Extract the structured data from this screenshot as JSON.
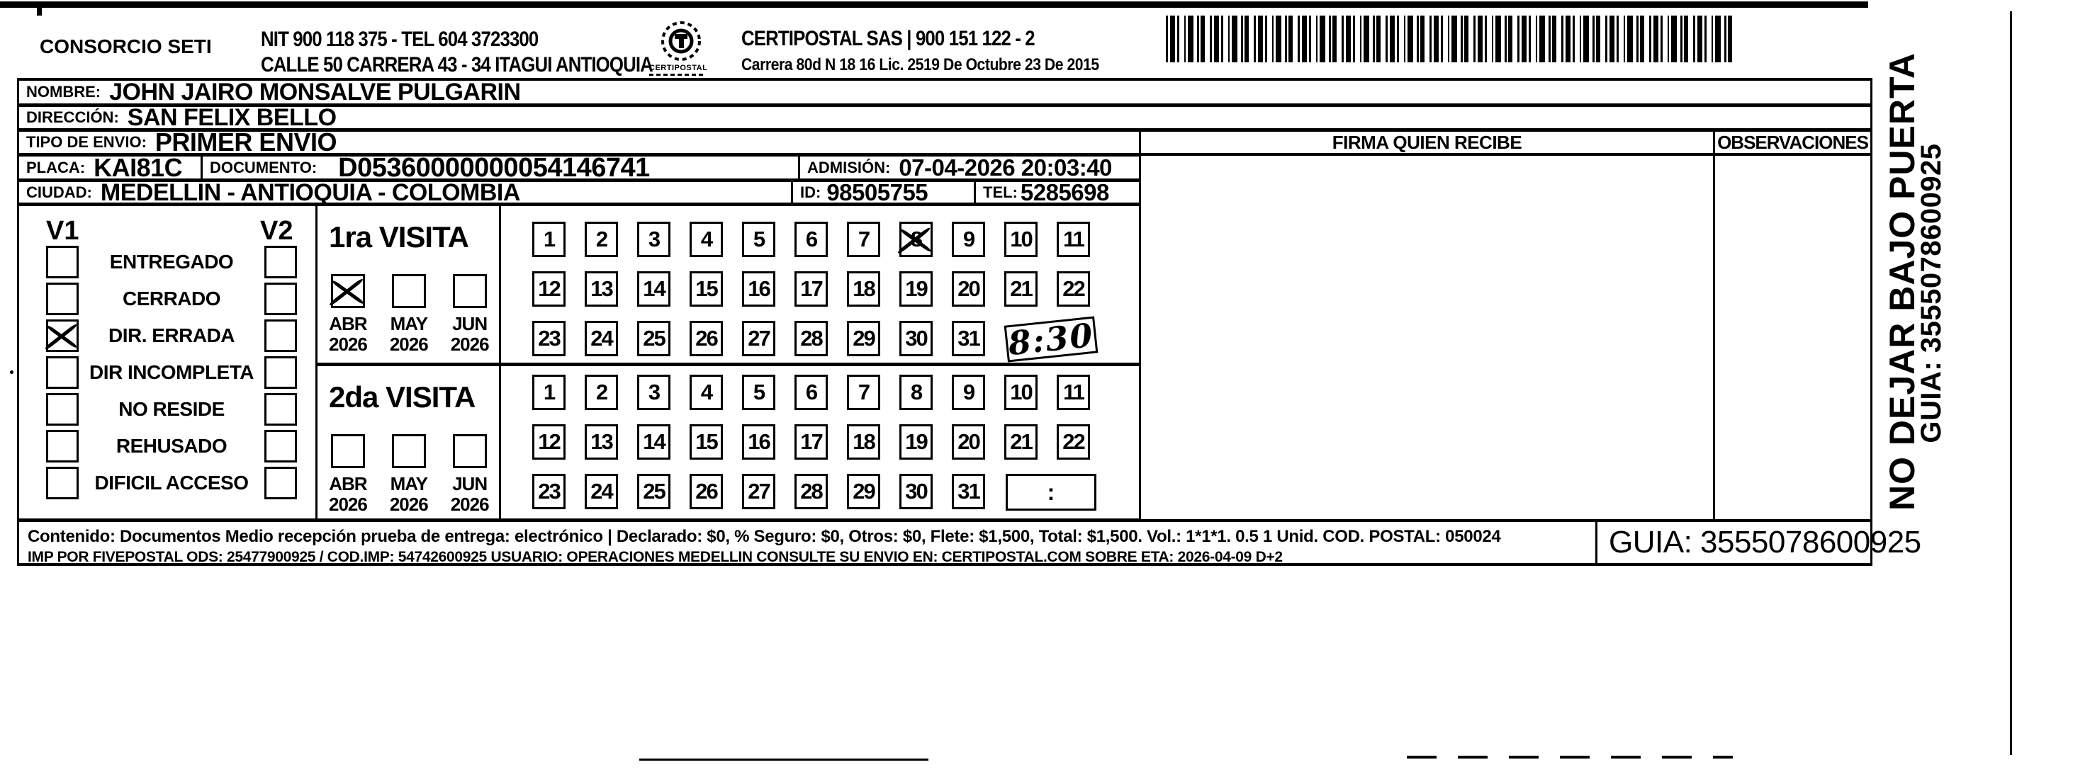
{
  "header": {
    "company": "CONSORCIO SETI",
    "nit_line": "NIT 900 118 375 - TEL 604 3723300",
    "address_line": "CALLE 50 CARRERA 43 - 34 ITAGUI ANTIOQUIA",
    "logo_caption": "CERTIPOSTAL",
    "provider_line": "CERTIPOSTAL SAS | 900 151 122 - 2",
    "license_line": "Carrera 80d N 18 16  Lic. 2519 De Octubre 23 De 2015"
  },
  "shipment": {
    "nombre_label": "NOMBRE:",
    "nombre": "JOHN JAIRO MONSALVE PULGARIN",
    "direccion_label": "DIRECCIÓN:",
    "direccion": "SAN FELIX BELLO",
    "tipo_label": "TIPO DE ENVIO:",
    "tipo": "PRIMER ENVIO",
    "placa_label": "PLACA:",
    "placa": "KAI81C",
    "documento_label": "DOCUMENTO:",
    "documento": "D05360000000054146741",
    "admision_label": "ADMISIÓN:",
    "admision": "07-04-2026 20:03:40",
    "ciudad_label": "CIUDAD:",
    "ciudad": "MEDELLIN - ANTIOQUIA - COLOMBIA",
    "id_label": "ID:",
    "id": "98505755",
    "tel_label": "TEL:",
    "tel": "5285698"
  },
  "signature": {
    "firma_header": "FIRMA QUIEN RECIBE",
    "observaciones_header": "OBSERVACIONES"
  },
  "status_panel": {
    "v1_label": "V1",
    "v2_label": "V2",
    "rows": [
      {
        "label": "ENTREGADO",
        "v1_checked": false,
        "v2_checked": false
      },
      {
        "label": "CERRADO",
        "v1_checked": false,
        "v2_checked": false
      },
      {
        "label": "DIR. ERRADA",
        "v1_checked": true,
        "v2_checked": false
      },
      {
        "label": "DIR INCOMPLETA",
        "v1_checked": false,
        "v2_checked": false
      },
      {
        "label": "NO RESIDE",
        "v1_checked": false,
        "v2_checked": false
      },
      {
        "label": "REHUSADO",
        "v1_checked": false,
        "v2_checked": false
      },
      {
        "label": "DIFICIL ACCESO",
        "v1_checked": false,
        "v2_checked": false
      }
    ]
  },
  "visits": [
    {
      "title": "1ra VISITA",
      "months": [
        {
          "label": "ABR",
          "year": "2026",
          "checked": true
        },
        {
          "label": "MAY",
          "year": "2026",
          "checked": false
        },
        {
          "label": "JUN",
          "year": "2026",
          "checked": false
        }
      ],
      "day_rows": [
        [
          1,
          2,
          3,
          4,
          5,
          6,
          7,
          8,
          9,
          10,
          11
        ],
        [
          12,
          13,
          14,
          15,
          16,
          17,
          18,
          19,
          20,
          21,
          22
        ],
        [
          23,
          24,
          25,
          26,
          27,
          28,
          29,
          30,
          31
        ]
      ],
      "crossed_day": 8,
      "time_text": "8:30",
      "time_handwritten": true
    },
    {
      "title": "2da VISITA",
      "months": [
        {
          "label": "ABR",
          "year": "2026",
          "checked": false
        },
        {
          "label": "MAY",
          "year": "2026",
          "checked": false
        },
        {
          "label": "JUN",
          "year": "2026",
          "checked": false
        }
      ],
      "day_rows": [
        [
          1,
          2,
          3,
          4,
          5,
          6,
          7,
          8,
          9,
          10,
          11
        ],
        [
          12,
          13,
          14,
          15,
          16,
          17,
          18,
          19,
          20,
          21,
          22
        ],
        [
          23,
          24,
          25,
          26,
          27,
          28,
          29,
          30,
          31
        ]
      ],
      "crossed_day": null,
      "time_text": ":",
      "time_handwritten": false
    }
  ],
  "footer": {
    "content_line": "Contenido: Documentos Medio recepción prueba de entrega: electrónico | Declarado: $0, % Seguro: $0, Otros: $0, Flete: $1,500, Total: $1,500. Vol.: 1*1*1. 0.5  1 Unid. COD. POSTAL: 050024",
    "imp_line": "IMP POR FIVEPOSTAL ODS: 25477900925 / COD.IMP: 54742600925 USUARIO: OPERACIONES MEDELLIN CONSULTE SU ENVIO EN: CERTIPOSTAL.COM SOBRE ETA: 2026-04-09 D+2",
    "guia": "GUIA: 3555078600925"
  },
  "side_note": {
    "line1": "NO DEJAR BAJO PUERTA",
    "line2": "GUIA: 3555078600925"
  }
}
